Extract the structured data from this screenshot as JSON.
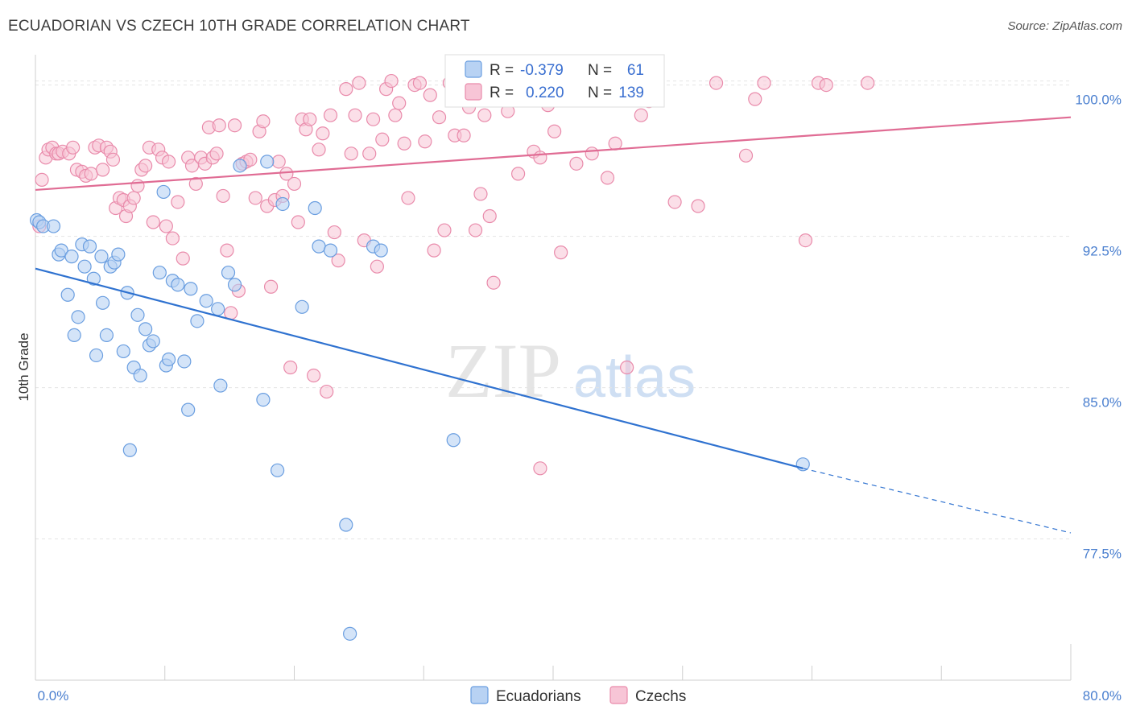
{
  "header": {
    "title": "ECUADORIAN VS CZECH 10TH GRADE CORRELATION CHART",
    "source": "Source: ZipAtlas.com"
  },
  "watermark": {
    "zip": "ZIP",
    "atlas": "atlas"
  },
  "colors": {
    "blue": "#6a9ee0",
    "blue_fill": "#b8d2f3",
    "blue_line": "#2f72d0",
    "pink": "#e98bab",
    "pink_fill": "#f7c5d6",
    "pink_line": "#e06c94",
    "tick_text": "#4a7fcf",
    "grid": "#e4e4e4"
  },
  "legend": {
    "r_label": "R =",
    "n_label": "N =",
    "rows": [
      {
        "series": "Ecuadorians",
        "r": "-0.379",
        "n": "61"
      },
      {
        "series": "Czechs",
        "r": "0.220",
        "n": "139"
      }
    ]
  },
  "bottom_legend": [
    "Ecuadorians",
    "Czechs"
  ],
  "chart_data": {
    "type": "scatter",
    "title": "ECUADORIAN VS CZECH 10TH GRADE CORRELATION CHART",
    "xlabel": "",
    "ylabel": "10th Grade",
    "xlim": [
      0,
      80
    ],
    "ylim": [
      70.5,
      101.5
    ],
    "x_tick_labels": [
      "0.0%",
      "80.0%"
    ],
    "y_ticks": [
      77.5,
      85.0,
      92.5,
      100.0
    ],
    "y_tick_labels": [
      "77.5%",
      "85.0%",
      "92.5%",
      "100.0%"
    ],
    "grid": true,
    "legend_position": "top-center",
    "series": [
      {
        "name": "Ecuadorians",
        "color": "#6a9ee0",
        "trend": {
          "x0": 0,
          "y0": 90.9,
          "x1": 59.3,
          "y1": 81.0,
          "dash_to_x": 80,
          "dash_to_y": 77.8
        },
        "points": [
          [
            0.1,
            93.3
          ],
          [
            0.3,
            93.2
          ],
          [
            0.6,
            93.0
          ],
          [
            1.4,
            93.0
          ],
          [
            1.8,
            91.6
          ],
          [
            2.0,
            91.8
          ],
          [
            2.5,
            89.6
          ],
          [
            2.8,
            91.5
          ],
          [
            3.0,
            87.6
          ],
          [
            3.3,
            88.5
          ],
          [
            3.6,
            92.1
          ],
          [
            3.8,
            91.0
          ],
          [
            4.2,
            92.0
          ],
          [
            4.5,
            90.4
          ],
          [
            4.7,
            86.6
          ],
          [
            5.1,
            91.5
          ],
          [
            5.2,
            89.2
          ],
          [
            5.5,
            87.6
          ],
          [
            5.8,
            91.0
          ],
          [
            6.1,
            91.2
          ],
          [
            6.4,
            91.6
          ],
          [
            6.8,
            86.8
          ],
          [
            7.1,
            89.7
          ],
          [
            7.3,
            81.9
          ],
          [
            7.6,
            86.0
          ],
          [
            7.9,
            88.6
          ],
          [
            8.1,
            85.6
          ],
          [
            8.5,
            87.9
          ],
          [
            8.8,
            87.1
          ],
          [
            9.1,
            87.3
          ],
          [
            9.6,
            90.7
          ],
          [
            9.9,
            94.7
          ],
          [
            10.1,
            86.1
          ],
          [
            10.3,
            86.4
          ],
          [
            10.6,
            90.3
          ],
          [
            11.0,
            90.1
          ],
          [
            11.5,
            86.3
          ],
          [
            11.8,
            83.9
          ],
          [
            12.0,
            89.9
          ],
          [
            12.5,
            88.3
          ],
          [
            13.2,
            89.3
          ],
          [
            14.1,
            88.9
          ],
          [
            14.3,
            85.1
          ],
          [
            14.9,
            90.7
          ],
          [
            15.4,
            90.1
          ],
          [
            15.8,
            96.0
          ],
          [
            17.6,
            84.4
          ],
          [
            17.9,
            96.2
          ],
          [
            18.7,
            80.9
          ],
          [
            19.1,
            94.1
          ],
          [
            20.6,
            89.0
          ],
          [
            21.6,
            93.9
          ],
          [
            21.9,
            92.0
          ],
          [
            22.8,
            91.8
          ],
          [
            24.0,
            78.2
          ],
          [
            24.3,
            72.8
          ],
          [
            26.1,
            92.0
          ],
          [
            26.7,
            91.8
          ],
          [
            32.3,
            82.4
          ],
          [
            35.6,
            99.7
          ],
          [
            59.3,
            81.2
          ]
        ]
      },
      {
        "name": "Czechs",
        "color": "#e98bab",
        "trend": {
          "x0": 0,
          "y0": 94.8,
          "x1": 80,
          "y1": 98.4
        },
        "points": [
          [
            0.3,
            93.0
          ],
          [
            0.5,
            95.3
          ],
          [
            0.8,
            96.4
          ],
          [
            1.0,
            96.8
          ],
          [
            1.3,
            96.9
          ],
          [
            1.6,
            96.6
          ],
          [
            1.8,
            96.6
          ],
          [
            2.1,
            96.7
          ],
          [
            2.6,
            96.6
          ],
          [
            2.9,
            96.9
          ],
          [
            3.2,
            95.8
          ],
          [
            3.6,
            95.7
          ],
          [
            3.9,
            95.5
          ],
          [
            4.3,
            95.6
          ],
          [
            4.6,
            96.9
          ],
          [
            4.9,
            97.0
          ],
          [
            5.2,
            95.8
          ],
          [
            5.5,
            96.9
          ],
          [
            5.8,
            96.7
          ],
          [
            6.0,
            96.3
          ],
          [
            6.2,
            93.9
          ],
          [
            6.5,
            94.4
          ],
          [
            6.8,
            94.3
          ],
          [
            7.0,
            93.5
          ],
          [
            7.3,
            94.0
          ],
          [
            7.6,
            94.4
          ],
          [
            7.9,
            95.0
          ],
          [
            8.2,
            95.8
          ],
          [
            8.5,
            96.0
          ],
          [
            8.8,
            96.9
          ],
          [
            9.1,
            93.2
          ],
          [
            9.5,
            96.8
          ],
          [
            9.8,
            96.4
          ],
          [
            10.1,
            93.0
          ],
          [
            10.3,
            96.2
          ],
          [
            10.6,
            92.4
          ],
          [
            11.0,
            94.2
          ],
          [
            11.4,
            91.4
          ],
          [
            11.8,
            96.4
          ],
          [
            12.1,
            96.0
          ],
          [
            12.4,
            95.1
          ],
          [
            12.8,
            96.4
          ],
          [
            13.1,
            96.1
          ],
          [
            13.4,
            97.9
          ],
          [
            13.7,
            96.4
          ],
          [
            14.0,
            96.6
          ],
          [
            14.2,
            98.0
          ],
          [
            14.5,
            94.5
          ],
          [
            14.8,
            91.8
          ],
          [
            15.1,
            88.7
          ],
          [
            15.4,
            98.0
          ],
          [
            15.7,
            89.8
          ],
          [
            16.0,
            96.1
          ],
          [
            16.3,
            96.2
          ],
          [
            16.6,
            96.3
          ],
          [
            17.0,
            94.4
          ],
          [
            17.3,
            97.7
          ],
          [
            17.6,
            98.2
          ],
          [
            17.9,
            94.0
          ],
          [
            18.2,
            90.0
          ],
          [
            18.5,
            94.3
          ],
          [
            18.8,
            96.2
          ],
          [
            19.1,
            94.5
          ],
          [
            19.4,
            95.6
          ],
          [
            19.7,
            86.0
          ],
          [
            20.0,
            95.1
          ],
          [
            20.3,
            93.2
          ],
          [
            20.6,
            98.3
          ],
          [
            20.9,
            97.8
          ],
          [
            21.2,
            98.3
          ],
          [
            21.5,
            85.6
          ],
          [
            21.9,
            96.8
          ],
          [
            22.2,
            97.6
          ],
          [
            22.5,
            84.8
          ],
          [
            22.8,
            98.5
          ],
          [
            23.1,
            92.7
          ],
          [
            23.4,
            91.3
          ],
          [
            24.0,
            99.8
          ],
          [
            24.4,
            96.6
          ],
          [
            24.7,
            98.5
          ],
          [
            25.0,
            100.1
          ],
          [
            25.4,
            92.3
          ],
          [
            25.8,
            96.6
          ],
          [
            26.1,
            98.3
          ],
          [
            26.4,
            91.0
          ],
          [
            26.8,
            97.3
          ],
          [
            27.1,
            99.8
          ],
          [
            27.5,
            100.2
          ],
          [
            27.8,
            98.5
          ],
          [
            28.1,
            99.1
          ],
          [
            28.5,
            97.1
          ],
          [
            28.8,
            94.4
          ],
          [
            29.3,
            100.0
          ],
          [
            29.7,
            100.1
          ],
          [
            30.1,
            97.2
          ],
          [
            30.5,
            99.5
          ],
          [
            30.8,
            91.8
          ],
          [
            31.2,
            98.4
          ],
          [
            31.6,
            92.8
          ],
          [
            32.0,
            100.1
          ],
          [
            32.4,
            97.5
          ],
          [
            32.7,
            99.8
          ],
          [
            33.1,
            97.5
          ],
          [
            33.5,
            98.9
          ],
          [
            34.0,
            92.8
          ],
          [
            34.4,
            94.6
          ],
          [
            34.7,
            98.5
          ],
          [
            35.1,
            93.5
          ],
          [
            35.4,
            90.2
          ],
          [
            35.9,
            99.8
          ],
          [
            36.5,
            98.7
          ],
          [
            37.3,
            95.6
          ],
          [
            37.9,
            99.3
          ],
          [
            38.5,
            96.7
          ],
          [
            39.0,
            96.4
          ],
          [
            39.6,
            99.0
          ],
          [
            40.1,
            97.7
          ],
          [
            40.6,
            91.7
          ],
          [
            41.1,
            99.4
          ],
          [
            41.8,
            96.1
          ],
          [
            42.4,
            99.8
          ],
          [
            43.0,
            96.6
          ],
          [
            43.6,
            100.1
          ],
          [
            44.2,
            95.4
          ],
          [
            44.8,
            97.1
          ],
          [
            45.3,
            99.8
          ],
          [
            45.7,
            86.0
          ],
          [
            46.2,
            99.4
          ],
          [
            46.8,
            98.5
          ],
          [
            47.4,
            99.2
          ],
          [
            48.0,
            100.1
          ],
          [
            49.4,
            94.2
          ],
          [
            51.2,
            94.0
          ],
          [
            52.6,
            100.1
          ],
          [
            54.9,
            96.5
          ],
          [
            55.6,
            99.3
          ],
          [
            56.3,
            100.1
          ],
          [
            59.5,
            92.3
          ],
          [
            60.5,
            100.1
          ],
          [
            61.1,
            100.0
          ],
          [
            64.3,
            100.1
          ],
          [
            39.0,
            81.0
          ]
        ]
      }
    ]
  }
}
